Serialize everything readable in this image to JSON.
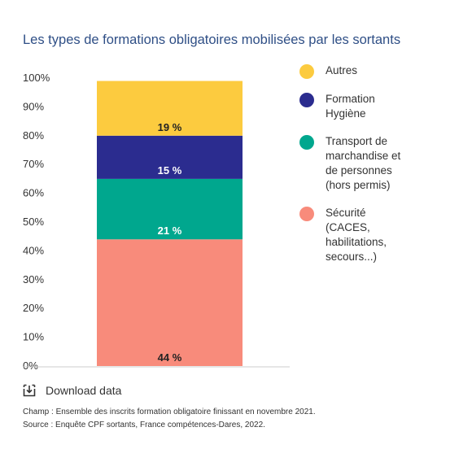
{
  "chart_data": {
    "type": "bar",
    "stacked": true,
    "title": "Les types de formations obligatoires mobilisées par les sortants",
    "yticks": [
      "0%",
      "10%",
      "20%",
      "30%",
      "40%",
      "50%",
      "60%",
      "70%",
      "80%",
      "90%",
      "100%"
    ],
    "ylim": [
      0,
      100
    ],
    "grid": false,
    "legend_position": "right",
    "series": [
      {
        "name": "Sécurité (CACES, habilitations, secours...)",
        "value": 44,
        "label": "44 %",
        "color": "#f88b7b",
        "label_color": "#222222"
      },
      {
        "name": "Transport de marchandise et de personnes (hors permis)",
        "value": 21,
        "label": "21 %",
        "color": "#00a78e",
        "label_color": "#ffffff"
      },
      {
        "name": "Formation Hygiène",
        "value": 15,
        "label": "15 %",
        "color": "#2b2c8f",
        "label_color": "#ffffff"
      },
      {
        "name": "Autres",
        "value": 19,
        "label": "19 %",
        "color": "#fccb3f",
        "label_color": "#222222"
      }
    ]
  },
  "legend": [
    {
      "label": "Autres",
      "color": "#fccb3f"
    },
    {
      "label": "Formation Hygiène",
      "color": "#2b2c8f"
    },
    {
      "label": "Transport de marchandise et de personnes (hors permis)",
      "color": "#00a78e"
    },
    {
      "label": "Sécurité (CACES, habilitations, secours...)",
      "color": "#f88b7b"
    }
  ],
  "footer": {
    "download_label": "Download data",
    "download_icon": "download-icon",
    "champ": "Champ : Ensemble des inscrits formation obligatoire finissant en novembre 2021.",
    "source": "Source : Enquête CPF sortants, France compétences-Dares, 2022."
  }
}
